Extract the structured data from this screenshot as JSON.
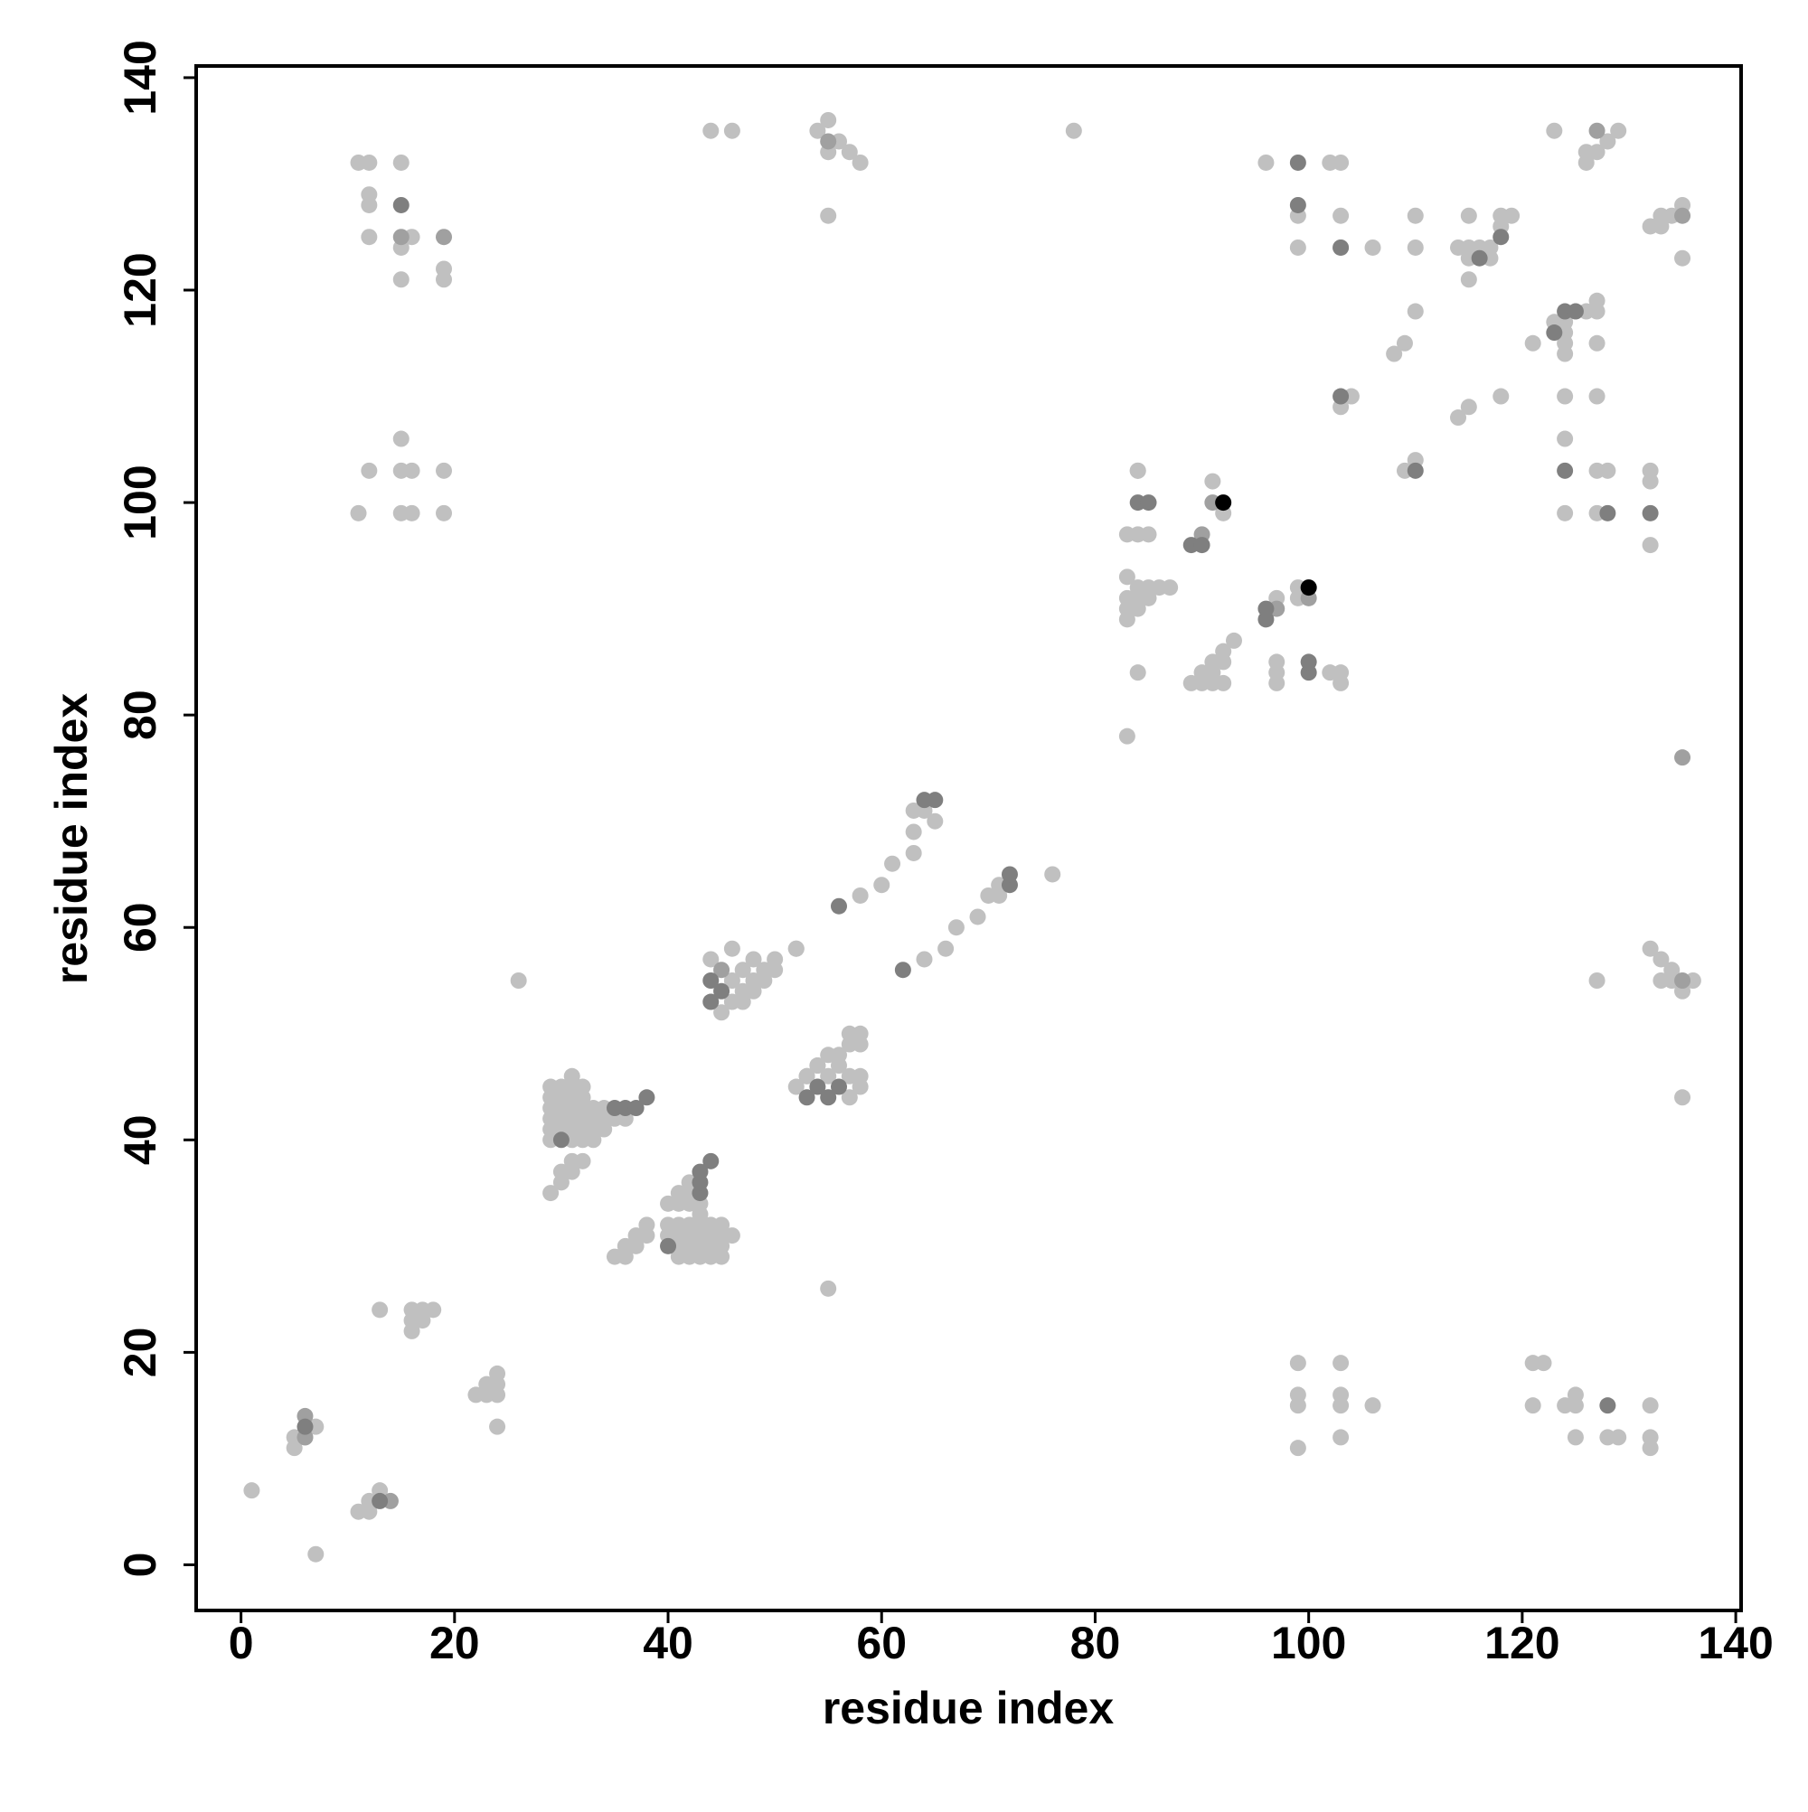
{
  "chart_data": {
    "type": "scatter",
    "xlabel": "residue index",
    "ylabel": "residue index",
    "xlim": [
      -4.2,
      140.5
    ],
    "ylim": [
      -4.3,
      141.1
    ],
    "xticks": [
      0,
      20,
      40,
      60,
      80,
      100,
      120,
      140
    ],
    "yticks": [
      0,
      20,
      40,
      60,
      80,
      100,
      120,
      140
    ],
    "series": [
      {
        "color": "#c0c0c0",
        "x": [
          1,
          7,
          5,
          5,
          6,
          7,
          11,
          12,
          12,
          13,
          13,
          16,
          16,
          16,
          17,
          17,
          18,
          22,
          23,
          23,
          24,
          24,
          24,
          24,
          26,
          55,
          29,
          29,
          29,
          29,
          29,
          29,
          30,
          30,
          30,
          30,
          30,
          31,
          31,
          31,
          31,
          31,
          31,
          32,
          32,
          32,
          32,
          32,
          32,
          29,
          30,
          30,
          31,
          31,
          32,
          31,
          33,
          33,
          33,
          33,
          34,
          34,
          35,
          36,
          34,
          35,
          36,
          36,
          37,
          37,
          38,
          38,
          40,
          40,
          41,
          41,
          41,
          41,
          42,
          42,
          42,
          42,
          43,
          43,
          43,
          43,
          44,
          44,
          44,
          44,
          45,
          45,
          45,
          45,
          46,
          40,
          41,
          41,
          42,
          42,
          42,
          43,
          43,
          45,
          46,
          46,
          47,
          47,
          48,
          48,
          49,
          49,
          50,
          50,
          52,
          44,
          46,
          47,
          48,
          52,
          52,
          53,
          53,
          54,
          54,
          55,
          55,
          56,
          56,
          57,
          57,
          57,
          58,
          58,
          58,
          58,
          57,
          58,
          60,
          61,
          63,
          63,
          64,
          65,
          63,
          64,
          66,
          67,
          69,
          70,
          71,
          71,
          76,
          78,
          84,
          83,
          83,
          83,
          83,
          84,
          84,
          84,
          85,
          85,
          86,
          87,
          83,
          84,
          85,
          83,
          84,
          84,
          91,
          92,
          89,
          90,
          90,
          91,
          91,
          91,
          92,
          92,
          92,
          93,
          97,
          99,
          99,
          97,
          97,
          97,
          102,
          103,
          103,
          44,
          46,
          54,
          55,
          55,
          56,
          57,
          58,
          55,
          11,
          12,
          12,
          12,
          12,
          15,
          15,
          16,
          15,
          19,
          19,
          11,
          12,
          15,
          15,
          16,
          15,
          16,
          19,
          19,
          96,
          99,
          99,
          102,
          103,
          103,
          103,
          106,
          110,
          110,
          110,
          108,
          109,
          103,
          104,
          109,
          110,
          114,
          115,
          118,
          114,
          115,
          115,
          115,
          115,
          116,
          117,
          117,
          118,
          118,
          119,
          121,
          123,
          124,
          124,
          124,
          124,
          126,
          127,
          127,
          127,
          123,
          126,
          126,
          127,
          128,
          129,
          124,
          127,
          124,
          127,
          128,
          124,
          127,
          132,
          132,
          132,
          132,
          133,
          133,
          134,
          135,
          135,
          132,
          133,
          134,
          133,
          134,
          135,
          136,
          127,
          135,
          99,
          99,
          99,
          99,
          103,
          103,
          103,
          103,
          106,
          121,
          122,
          121,
          124,
          125,
          125,
          125,
          128,
          129,
          132,
          132,
          132
        ],
        "values": [
          7,
          1,
          11,
          12,
          12,
          13,
          5,
          5,
          6,
          7,
          24,
          22,
          23,
          24,
          23,
          24,
          24,
          16,
          16,
          17,
          16,
          17,
          18,
          13,
          55,
          26,
          40,
          41,
          42,
          43,
          44,
          45,
          41,
          42,
          43,
          44,
          45,
          40,
          41,
          42,
          43,
          44,
          45,
          40,
          41,
          42,
          43,
          44,
          45,
          35,
          36,
          37,
          37,
          38,
          38,
          46,
          40,
          41,
          42,
          43,
          41,
          42,
          42,
          42,
          43,
          29,
          29,
          30,
          30,
          31,
          31,
          32,
          31,
          32,
          29,
          30,
          31,
          32,
          29,
          30,
          31,
          32,
          29,
          30,
          31,
          32,
          29,
          30,
          31,
          32,
          29,
          30,
          31,
          32,
          31,
          34,
          34,
          35,
          34,
          35,
          36,
          34,
          33,
          52,
          58,
          53,
          53,
          54,
          54,
          55,
          55,
          56,
          56,
          57,
          58,
          57,
          55,
          56,
          57,
          58,
          45,
          46,
          46,
          47,
          47,
          48,
          46,
          48,
          47,
          49,
          44,
          46,
          50,
          45,
          46,
          49,
          50,
          63,
          64,
          66,
          67,
          69,
          71,
          70,
          71,
          57,
          58,
          60,
          61,
          63,
          64,
          63,
          65,
          135,
          84,
          78,
          89,
          90,
          91,
          92,
          90,
          91,
          92,
          91,
          92,
          92,
          93,
          97,
          97,
          97,
          103,
          103,
          102,
          99,
          83,
          83,
          84,
          83,
          84,
          85,
          83,
          85,
          86,
          87,
          91,
          91,
          92,
          83,
          84,
          85,
          84,
          84,
          83,
          135,
          135,
          135,
          133,
          136,
          134,
          133,
          132,
          127,
          132,
          132,
          129,
          128,
          125,
          124,
          121,
          125,
          132,
          122,
          121,
          99,
          103,
          106,
          103,
          103,
          99,
          99,
          103,
          99,
          132,
          127,
          124,
          132,
          132,
          127,
          124,
          124,
          127,
          124,
          118,
          114,
          115,
          109,
          110,
          103,
          104,
          108,
          109,
          110,
          124,
          124,
          123,
          121,
          127,
          124,
          123,
          124,
          126,
          127,
          127,
          115,
          117,
          117,
          116,
          115,
          114,
          118,
          118,
          119,
          115,
          135,
          133,
          132,
          133,
          134,
          135,
          110,
          110,
          106,
          103,
          103,
          99,
          99,
          103,
          102,
          96,
          126,
          126,
          127,
          127,
          128,
          123,
          58,
          57,
          56,
          55,
          55,
          54,
          55,
          55,
          44,
          19,
          16,
          15,
          11,
          19,
          16,
          15,
          12,
          15,
          19,
          19,
          15,
          15,
          16,
          15,
          12,
          12,
          12,
          15,
          12,
          11
        ]
      },
      {
        "color": "#a0a0a0",
        "x": [
          6,
          14,
          6,
          15,
          19,
          55,
          127,
          135,
          135,
          135,
          90,
          91,
          97,
          100,
          45
        ],
        "values": [
          14,
          6,
          12,
          125,
          125,
          134,
          135,
          127,
          76,
          55,
          97,
          100,
          90,
          91,
          56
        ]
      },
      {
        "color": "#7f7f7f",
        "x": [
          13,
          30,
          35,
          36,
          37,
          38,
          40,
          43,
          43,
          43,
          44,
          44,
          44,
          45,
          53,
          54,
          55,
          56,
          56,
          62,
          64,
          65,
          72,
          72,
          84,
          85,
          89,
          90,
          96,
          96,
          100,
          100,
          15,
          99,
          99,
          103,
          103,
          110,
          116,
          118,
          123,
          124,
          125,
          124,
          128,
          132,
          128,
          6
        ],
        "values": [
          6,
          40,
          43,
          43,
          43,
          44,
          30,
          35,
          36,
          37,
          38,
          53,
          55,
          54,
          44,
          45,
          44,
          45,
          62,
          56,
          72,
          72,
          64,
          65,
          100,
          100,
          96,
          96,
          89,
          90,
          84,
          85,
          128,
          132,
          128,
          124,
          110,
          103,
          123,
          125,
          116,
          118,
          118,
          103,
          99,
          99,
          15,
          13
        ]
      },
      {
        "color": "#000000",
        "x": [
          92,
          100
        ],
        "values": [
          100,
          92
        ]
      }
    ]
  }
}
